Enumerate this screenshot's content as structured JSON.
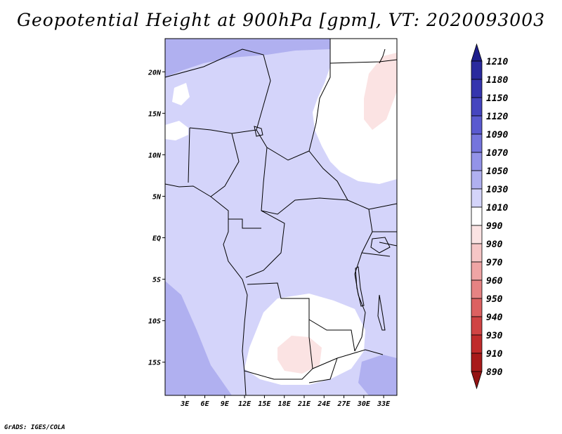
{
  "title": "Geopotential Height at 900hPa [gpm], VT: 2020093003",
  "credit": "GrADS: IGES/COLA",
  "map": {
    "region": "Central Africa",
    "lon_range": [
      0,
      35
    ],
    "lat_range": [
      -19,
      24
    ],
    "x_ticks": [
      {
        "value": 3,
        "label": "3E"
      },
      {
        "value": 6,
        "label": "6E"
      },
      {
        "value": 9,
        "label": "9E"
      },
      {
        "value": 12,
        "label": "12E"
      },
      {
        "value": 15,
        "label": "15E"
      },
      {
        "value": 18,
        "label": "18E"
      },
      {
        "value": 21,
        "label": "21E"
      },
      {
        "value": 24,
        "label": "24E"
      },
      {
        "value": 27,
        "label": "27E"
      },
      {
        "value": 30,
        "label": "30E"
      },
      {
        "value": 33,
        "label": "33E"
      }
    ],
    "y_ticks": [
      {
        "value": 20,
        "label": "20N"
      },
      {
        "value": 15,
        "label": "15N"
      },
      {
        "value": 10,
        "label": "10N"
      },
      {
        "value": 5,
        "label": "5N"
      },
      {
        "value": 0,
        "label": "EQ"
      },
      {
        "value": -5,
        "label": "5S"
      },
      {
        "value": -10,
        "label": "10S"
      },
      {
        "value": -15,
        "label": "15S"
      }
    ]
  },
  "colorbar": {
    "levels": [
      {
        "label": "1210",
        "color": "#1f1f8c"
      },
      {
        "label": "1180",
        "color": "#2a2a9e"
      },
      {
        "label": "1150",
        "color": "#3535ae"
      },
      {
        "label": "1120",
        "color": "#4545bf"
      },
      {
        "label": "1090",
        "color": "#5a5ad0"
      },
      {
        "label": "1070",
        "color": "#7575dd"
      },
      {
        "label": "1050",
        "color": "#9393e8"
      },
      {
        "label": "1030",
        "color": "#b0b0f0"
      },
      {
        "label": "1010",
        "color": "#d4d4fa"
      },
      {
        "label": "990",
        "color": "#ffffff"
      },
      {
        "label": "980",
        "color": "#fbe3e3"
      },
      {
        "label": "970",
        "color": "#f6c6c6"
      },
      {
        "label": "960",
        "color": "#efa5a5"
      },
      {
        "label": "950",
        "color": "#e68383"
      },
      {
        "label": "940",
        "color": "#dc6161"
      },
      {
        "label": "930",
        "color": "#d04444"
      },
      {
        "label": "910",
        "color": "#c02b2b"
      },
      {
        "label": "890",
        "color": "#a81a1a"
      }
    ],
    "bottom_color": "#931313"
  },
  "colors": {
    "field_main": "#d4d4fa",
    "field_high": "#b0b0f0",
    "field_low": "#ffffff",
    "field_lowest": "#fbe3e3"
  }
}
